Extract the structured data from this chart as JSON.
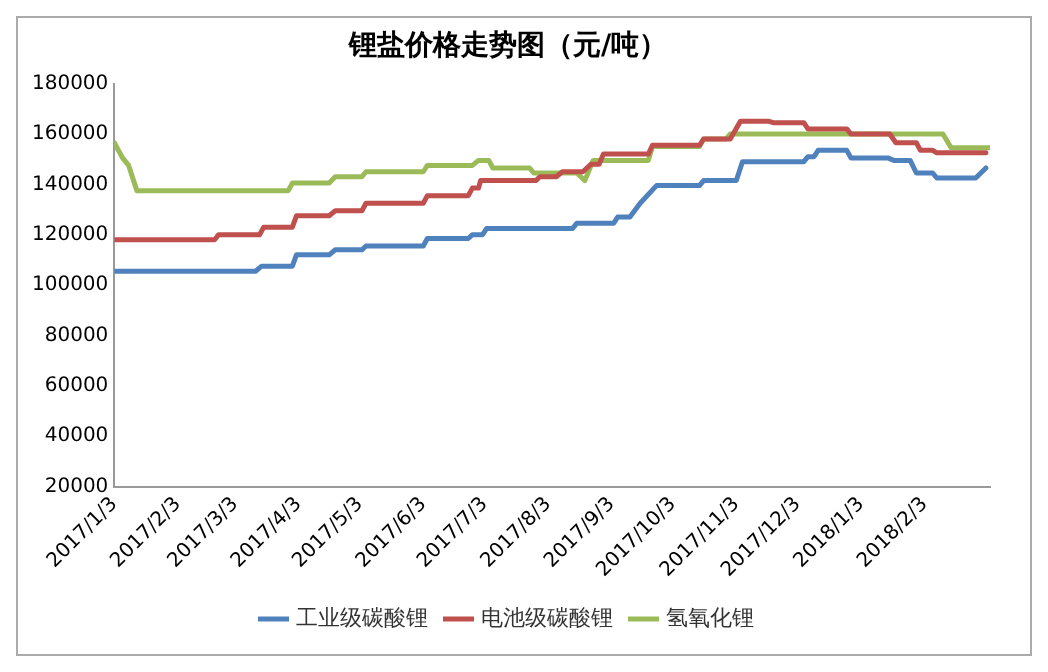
{
  "chart_data": {
    "type": "line",
    "title": "锂盐价格走势图（元/吨）",
    "xlim": [
      "2017-01-03",
      "2018-03-07"
    ],
    "ylim": [
      20000,
      180000
    ],
    "xticks": [
      {
        "value": "2017-01-03",
        "label": "2017/1/3"
      },
      {
        "value": "2017-02-03",
        "label": "2017/2/3"
      },
      {
        "value": "2017-03-03",
        "label": "2017/3/3"
      },
      {
        "value": "2017-04-03",
        "label": "2017/4/3"
      },
      {
        "value": "2017-05-03",
        "label": "2017/5/3"
      },
      {
        "value": "2017-06-03",
        "label": "2017/6/3"
      },
      {
        "value": "2017-07-03",
        "label": "2017/7/3"
      },
      {
        "value": "2017-08-03",
        "label": "2017/8/3"
      },
      {
        "value": "2017-09-03",
        "label": "2017/9/3"
      },
      {
        "value": "2017-10-03",
        "label": "2017/10/3"
      },
      {
        "value": "2017-11-03",
        "label": "2017/11/3"
      },
      {
        "value": "2017-12-03",
        "label": "2017/12/3"
      },
      {
        "value": "2018-01-03",
        "label": "2018/1/3"
      },
      {
        "value": "2018-02-03",
        "label": "2018/2/3"
      }
    ],
    "yticks": [
      20000,
      40000,
      60000,
      80000,
      100000,
      120000,
      140000,
      160000,
      180000
    ],
    "grid": false,
    "legend": "bottom",
    "marker": "none",
    "line_style": "solid",
    "series": [
      {
        "name": "工业级碳酸锂",
        "color": "#4f81bd",
        "x": [
          "2017-01-03",
          "2017-03-13",
          "2017-03-16",
          "2017-03-31",
          "2017-04-02",
          "2017-04-18",
          "2017-04-21",
          "2017-05-04",
          "2017-05-06",
          "2017-06-03",
          "2017-06-05",
          "2017-06-25",
          "2017-06-27",
          "2017-07-02",
          "2017-07-04",
          "2017-08-15",
          "2017-08-17",
          "2017-09-04",
          "2017-09-06",
          "2017-09-12",
          "2017-09-17",
          "2017-09-25",
          "2017-10-16",
          "2017-10-18",
          "2017-11-03",
          "2017-11-06",
          "2017-12-06",
          "2017-12-08",
          "2017-12-11",
          "2017-12-13",
          "2017-12-27",
          "2017-12-29",
          "2018-01-16",
          "2018-01-19",
          "2018-01-27",
          "2018-01-30",
          "2018-02-07",
          "2018-02-09",
          "2018-02-28",
          "2018-03-05"
        ],
        "values": [
          105500,
          105500,
          107500,
          107500,
          112000,
          112000,
          114000,
          114000,
          115500,
          115500,
          118500,
          118500,
          120000,
          120000,
          122500,
          122500,
          124500,
          124500,
          127000,
          127000,
          132500,
          139500,
          139500,
          141500,
          141500,
          149000,
          149000,
          151000,
          151000,
          153500,
          153500,
          150500,
          150500,
          149500,
          149500,
          144500,
          144500,
          142500,
          142500,
          146500
        ]
      },
      {
        "name": "电池级碳酸锂",
        "color": "#c0504d",
        "x": [
          "2017-01-03",
          "2017-02-21",
          "2017-02-23",
          "2017-03-15",
          "2017-03-17",
          "2017-03-31",
          "2017-04-02",
          "2017-04-18",
          "2017-04-21",
          "2017-05-04",
          "2017-05-06",
          "2017-06-03",
          "2017-06-05",
          "2017-06-25",
          "2017-06-27",
          "2017-06-30",
          "2017-07-01",
          "2017-07-28",
          "2017-07-30",
          "2017-08-07",
          "2017-08-10",
          "2017-08-20",
          "2017-08-24",
          "2017-08-28",
          "2017-08-30",
          "2017-09-21",
          "2017-09-23",
          "2017-10-16",
          "2017-10-18",
          "2017-10-31",
          "2017-11-05",
          "2017-11-19",
          "2017-11-21",
          "2017-12-06",
          "2017-12-08",
          "2017-12-27",
          "2017-12-29",
          "2018-01-17",
          "2018-01-20",
          "2018-01-30",
          "2018-02-01",
          "2018-02-07",
          "2018-02-09",
          "2018-03-05"
        ],
        "values": [
          118000,
          118000,
          120000,
          120000,
          123000,
          123000,
          127500,
          127500,
          129500,
          129500,
          132500,
          132500,
          135500,
          135500,
          138500,
          138500,
          141500,
          141500,
          143000,
          143000,
          145000,
          145000,
          148000,
          148000,
          152000,
          152000,
          155500,
          155500,
          158000,
          158000,
          165000,
          165000,
          164500,
          164500,
          162000,
          162000,
          160000,
          160000,
          156500,
          156500,
          153500,
          153500,
          152500,
          152500
        ]
      },
      {
        "name": "氢氧化锂",
        "color": "#9bbb59",
        "x": [
          "2017-01-03",
          "2017-01-07",
          "2017-01-10",
          "2017-01-14",
          "2017-03-29",
          "2017-03-31",
          "2017-04-18",
          "2017-04-21",
          "2017-05-04",
          "2017-05-06",
          "2017-06-03",
          "2017-06-05",
          "2017-06-27",
          "2017-06-30",
          "2017-07-05",
          "2017-07-07",
          "2017-07-25",
          "2017-07-27",
          "2017-08-17",
          "2017-08-21",
          "2017-08-25",
          "2017-09-21",
          "2017-09-23",
          "2017-10-16",
          "2017-10-18",
          "2017-10-29",
          "2017-10-31",
          "2018-02-12",
          "2018-02-16",
          "2018-03-07"
        ],
        "values": [
          156500,
          150500,
          147500,
          137500,
          137500,
          140500,
          140500,
          143000,
          143000,
          145000,
          145000,
          147500,
          147500,
          149500,
          149500,
          146500,
          146500,
          144500,
          144500,
          141500,
          149500,
          149500,
          155000,
          155000,
          158000,
          158000,
          160000,
          160000,
          154500,
          154500
        ]
      }
    ]
  }
}
